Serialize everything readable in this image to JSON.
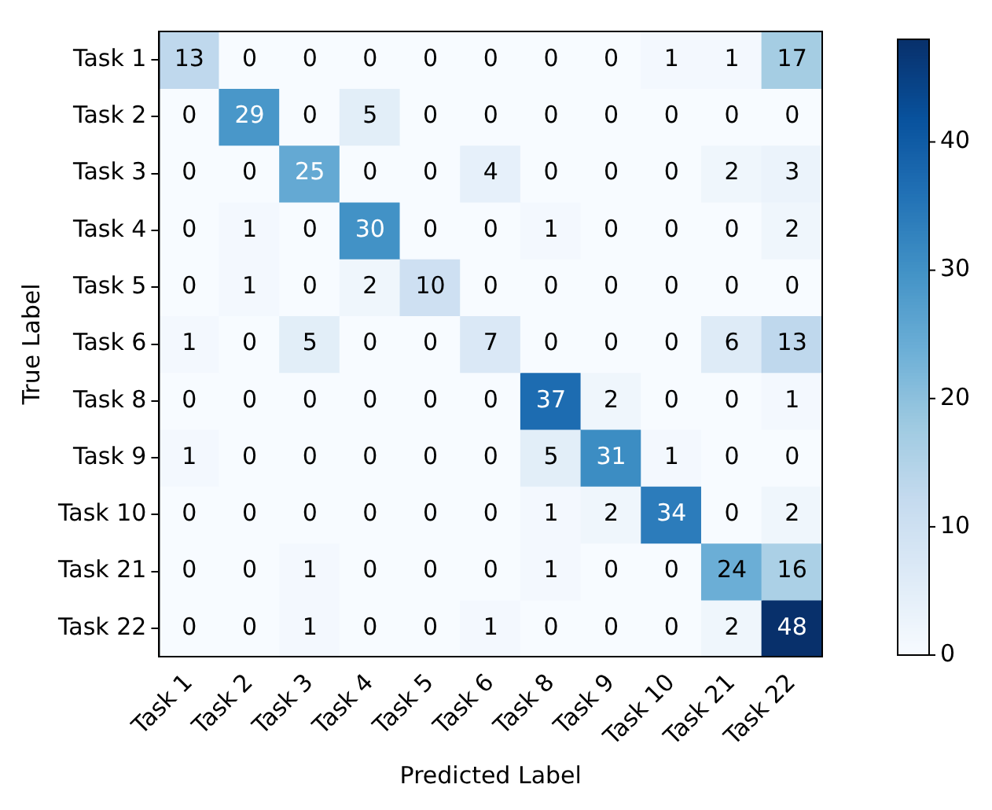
{
  "chart_data": {
    "type": "heatmap",
    "xlabel": "Predicted Label",
    "ylabel": "True Label",
    "categories": [
      "Task 1",
      "Task 2",
      "Task 3",
      "Task 4",
      "Task 5",
      "Task 6",
      "Task 8",
      "Task 9",
      "Task 10",
      "Task 21",
      "Task 22"
    ],
    "y_categories": [
      "Task 1",
      "Task 2",
      "Task 3",
      "Task 4",
      "Task 5",
      "Task 6",
      "Task 8",
      "Task 9",
      "Task 10",
      "Task 21",
      "Task 22"
    ],
    "cells": [
      [
        13,
        0,
        0,
        0,
        0,
        0,
        0,
        0,
        1,
        1,
        17
      ],
      [
        0,
        29,
        0,
        5,
        0,
        0,
        0,
        0,
        0,
        0,
        0
      ],
      [
        0,
        0,
        25,
        0,
        0,
        4,
        0,
        0,
        0,
        2,
        3
      ],
      [
        0,
        1,
        0,
        30,
        0,
        0,
        1,
        0,
        0,
        0,
        2
      ],
      [
        0,
        1,
        0,
        2,
        10,
        0,
        0,
        0,
        0,
        0,
        0
      ],
      [
        1,
        0,
        5,
        0,
        0,
        7,
        0,
        0,
        0,
        6,
        13
      ],
      [
        0,
        0,
        0,
        0,
        0,
        0,
        37,
        2,
        0,
        0,
        1
      ],
      [
        1,
        0,
        0,
        0,
        0,
        0,
        5,
        31,
        1,
        0,
        0
      ],
      [
        0,
        0,
        0,
        0,
        0,
        0,
        1,
        2,
        34,
        0,
        2
      ],
      [
        0,
        0,
        1,
        0,
        0,
        0,
        1,
        0,
        0,
        24,
        16
      ],
      [
        0,
        0,
        1,
        0,
        0,
        1,
        0,
        0,
        0,
        2,
        48
      ]
    ],
    "clim": [
      0,
      48
    ],
    "cticks": [
      0,
      10,
      20,
      30,
      40
    ],
    "data_labels": true
  }
}
